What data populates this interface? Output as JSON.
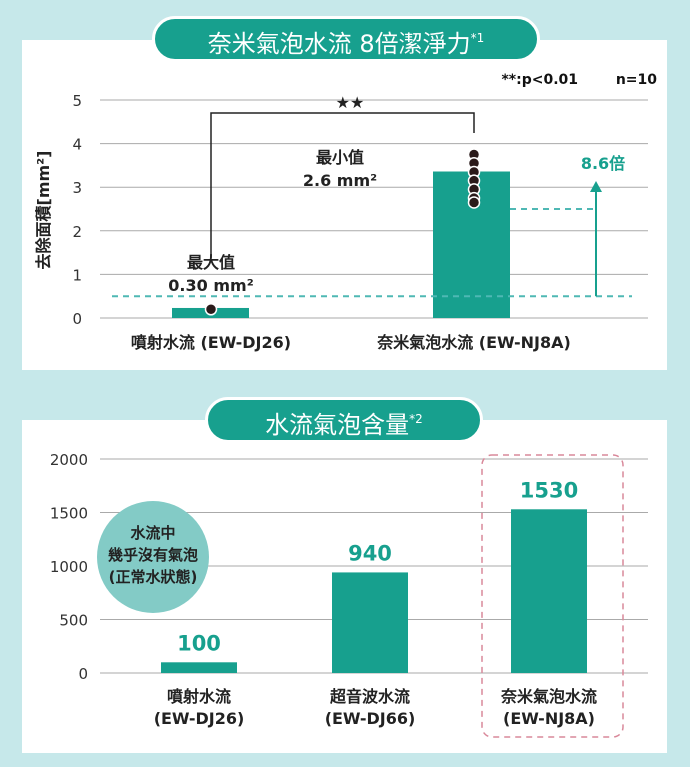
{
  "colors": {
    "teal": "#17a08e",
    "dash": "#4fb8b4",
    "pink": "#d9889a",
    "circle": "#83cbc6"
  },
  "chart_data": [
    {
      "type": "bar",
      "title": "奈米氣泡水流 8倍潔淨力",
      "title_note": "*1",
      "ylabel": "去除面積[mm²]",
      "ylim": [
        0,
        5
      ],
      "yticks": [
        "0",
        "1",
        "2",
        "3",
        "4",
        "5"
      ],
      "categories": [
        "噴射水流 (EW-DJ26)",
        "奈米氣泡水流 (EW-NJ8A)"
      ],
      "values": [
        0.23,
        3.36
      ],
      "points": [
        [
          0.2
        ],
        [
          3.75,
          3.55,
          3.35,
          3.15,
          2.95,
          2.75,
          2.65
        ]
      ],
      "reference_lines": [
        0.5,
        2.5
      ],
      "annotations": {
        "stat": "**:p<0.01",
        "n": "n=10",
        "sig": "★★",
        "max_label": "最大值",
        "max_value": "0.30 mm²",
        "min_label": "最小值",
        "min_value": "2.6 mm²",
        "ratio": "8.6倍"
      }
    },
    {
      "type": "bar",
      "title": "水流氣泡含量",
      "title_note": "*2",
      "ylim": [
        0,
        2000
      ],
      "yticks": [
        "0",
        "500",
        "1000",
        "1500",
        "2000"
      ],
      "categories": [
        [
          "噴射水流",
          "(EW-DJ26)"
        ],
        [
          "超音波水流",
          "(EW-DJ66)"
        ],
        [
          "奈米氣泡水流",
          "(EW-NJ8A)"
        ]
      ],
      "values": [
        100,
        940,
        1530
      ],
      "value_labels": [
        "100",
        "940",
        "1530"
      ],
      "callout": [
        "水流中",
        "幾乎沒有氣泡",
        "(正常水狀態)"
      ]
    }
  ]
}
